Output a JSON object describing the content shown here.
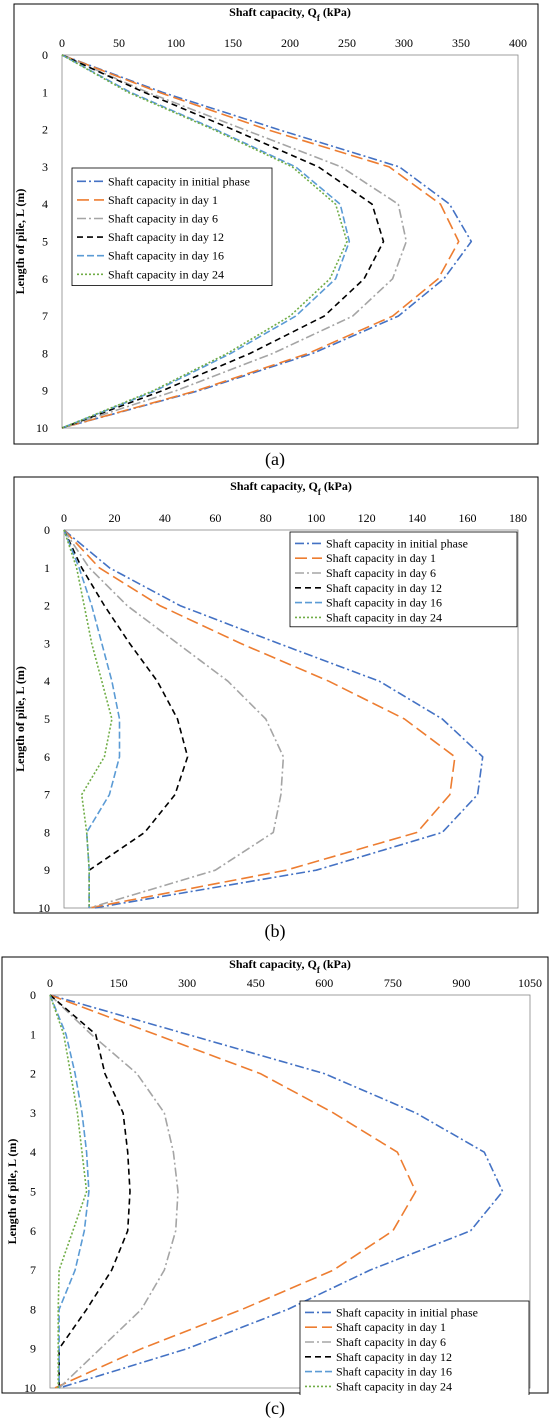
{
  "chart_data": [
    {
      "type": "line",
      "panel": "a",
      "caption": "(a)",
      "xlabel": "Shaft capacity, Q",
      "xlabel_sub": "f",
      "xlabel_unit": " (kPa)",
      "ylabel": "Length of pile, L (m)",
      "xlim": [
        0,
        400
      ],
      "ylim": [
        0,
        10
      ],
      "xticks": [
        0,
        50,
        100,
        150,
        200,
        250,
        300,
        350,
        400
      ],
      "yticks": [
        0,
        1,
        2,
        3,
        4,
        5,
        6,
        7,
        8,
        9,
        10
      ],
      "x_axis_position": "top",
      "y_inverted": true,
      "legend_position": "left-middle",
      "series": [
        {
          "name": "Shaft capacity in initial phase",
          "color": "#4472c4",
          "dash": "dashdot",
          "x": [
            0,
            88,
            190,
            296,
            340,
            359,
            335,
            295,
            220,
            120,
            0
          ],
          "y": [
            0,
            1,
            2,
            3,
            4,
            5,
            6,
            7,
            8,
            9,
            10
          ]
        },
        {
          "name": "Shaft capacity in day 1",
          "color": "#ed7d31",
          "dash": "longdash",
          "x": [
            0,
            85,
            180,
            287,
            332,
            348,
            330,
            290,
            216,
            118,
            0
          ],
          "y": [
            0,
            1,
            2,
            3,
            4,
            5,
            6,
            7,
            8,
            9,
            10
          ]
        },
        {
          "name": "Shaft capacity in day 6",
          "color": "#a5a5a5",
          "dash": "dashdot",
          "x": [
            0,
            75,
            160,
            245,
            295,
            302,
            290,
            255,
            185,
            100,
            0
          ],
          "y": [
            0,
            1,
            2,
            3,
            4,
            5,
            6,
            7,
            8,
            9,
            10
          ]
        },
        {
          "name": "Shaft capacity in day 12",
          "color": "#000000",
          "dash": "shortdash",
          "x": [
            0,
            72,
            150,
            225,
            272,
            282,
            265,
            230,
            165,
            88,
            0
          ],
          "y": [
            0,
            1,
            2,
            3,
            4,
            5,
            6,
            7,
            8,
            9,
            10
          ]
        },
        {
          "name": "Shaft capacity in day 16",
          "color": "#5b9bd5",
          "dash": "mediumdash",
          "x": [
            0,
            60,
            135,
            205,
            244,
            252,
            240,
            205,
            148,
            82,
            0
          ],
          "y": [
            0,
            1,
            2,
            3,
            4,
            5,
            6,
            7,
            8,
            9,
            10
          ]
        },
        {
          "name": "Shaft capacity in day 24",
          "color": "#70ad47",
          "dash": "dotted",
          "x": [
            0,
            58,
            133,
            202,
            240,
            250,
            235,
            200,
            145,
            80,
            0
          ],
          "y": [
            0,
            1,
            2,
            3,
            4,
            5,
            6,
            7,
            8,
            9,
            10
          ]
        }
      ]
    },
    {
      "type": "line",
      "panel": "b",
      "caption": "(b)",
      "xlabel": "Shaft capacity, Q",
      "xlabel_sub": "f",
      "xlabel_unit": " (kPa)",
      "ylabel": "Length of pile, L (m)",
      "xlim": [
        0,
        180
      ],
      "ylim": [
        0,
        10
      ],
      "xticks": [
        0,
        20,
        40,
        60,
        80,
        100,
        120,
        140,
        160,
        180
      ],
      "yticks": [
        0,
        1,
        2,
        3,
        4,
        5,
        6,
        7,
        8,
        9,
        10
      ],
      "x_axis_position": "top",
      "y_inverted": true,
      "legend_position": "top-right",
      "series": [
        {
          "name": "Shaft capacity in initial phase",
          "color": "#4472c4",
          "dash": "dashdot",
          "x": [
            0,
            18,
            46,
            85,
            125,
            150,
            166,
            164,
            150,
            100,
            12
          ],
          "y": [
            0,
            1,
            2,
            3,
            4,
            5,
            6,
            7,
            8,
            9,
            10
          ]
        },
        {
          "name": "Shaft capacity in day 1",
          "color": "#ed7d31",
          "dash": "longdash",
          "x": [
            0,
            14,
            38,
            70,
            105,
            135,
            155,
            153,
            140,
            88,
            10
          ],
          "y": [
            0,
            1,
            2,
            3,
            4,
            5,
            6,
            7,
            8,
            9,
            10
          ]
        },
        {
          "name": "Shaft capacity in day 6",
          "color": "#a5a5a5",
          "dash": "dashdot",
          "x": [
            0,
            10,
            25,
            45,
            65,
            80,
            87,
            86,
            83,
            60,
            10
          ],
          "y": [
            0,
            1,
            2,
            3,
            4,
            5,
            6,
            7,
            8,
            9,
            10
          ]
        },
        {
          "name": "Shaft capacity in day 12",
          "color": "#000000",
          "dash": "shortdash",
          "x": [
            0,
            7,
            16,
            26,
            37,
            45,
            49,
            44,
            32,
            10,
            10
          ],
          "y": [
            0,
            1,
            2,
            3,
            4,
            5,
            6,
            7,
            8,
            9,
            10
          ]
        },
        {
          "name": "Shaft capacity in day 16",
          "color": "#5b9bd5",
          "dash": "mediumdash",
          "x": [
            0,
            6,
            11,
            15,
            19,
            22,
            22,
            18,
            9,
            10,
            10
          ],
          "y": [
            0,
            1,
            2,
            3,
            4,
            5,
            6,
            7,
            8,
            9,
            10
          ]
        },
        {
          "name": "Shaft capacity in day 24",
          "color": "#70ad47",
          "dash": "dotted",
          "x": [
            0,
            5,
            8,
            11,
            15,
            19,
            16,
            7,
            9,
            10,
            10
          ],
          "y": [
            0,
            1,
            2,
            3,
            4,
            5,
            6,
            7,
            8,
            9,
            10
          ]
        }
      ]
    },
    {
      "type": "line",
      "panel": "c",
      "caption": "(c)",
      "xlabel": "Shaft capacity, Q",
      "xlabel_sub": "f",
      "xlabel_unit": " (kPa)",
      "ylabel": "Length of pile, L (m)",
      "xlim": [
        0,
        1050
      ],
      "ylim": [
        0,
        10
      ],
      "xticks": [
        0,
        150,
        300,
        450,
        600,
        750,
        900,
        1050
      ],
      "yticks": [
        0,
        1,
        2,
        3,
        4,
        5,
        6,
        7,
        8,
        9,
        10
      ],
      "x_axis_position": "top",
      "y_inverted": true,
      "legend_position": "bottom-right",
      "series": [
        {
          "name": "Shaft capacity in initial phase",
          "color": "#4472c4",
          "dash": "dashdot",
          "x": [
            0,
            300,
            600,
            800,
            950,
            990,
            920,
            700,
            520,
            300,
            20
          ],
          "y": [
            0,
            1,
            2,
            3,
            4,
            5,
            6,
            7,
            8,
            9,
            10
          ]
        },
        {
          "name": "Shaft capacity in day 1",
          "color": "#ed7d31",
          "dash": "longdash",
          "x": [
            0,
            230,
            460,
            620,
            760,
            800,
            750,
            620,
            420,
            200,
            10
          ],
          "y": [
            0,
            1,
            2,
            3,
            4,
            5,
            6,
            7,
            8,
            9,
            10
          ]
        },
        {
          "name": "Shaft capacity in day 6",
          "color": "#a5a5a5",
          "dash": "dashdot",
          "x": [
            0,
            90,
            190,
            250,
            270,
            280,
            275,
            250,
            200,
            110,
            20
          ],
          "y": [
            0,
            1,
            2,
            3,
            4,
            5,
            6,
            7,
            8,
            9,
            10
          ]
        },
        {
          "name": "Shaft capacity in day 12",
          "color": "#000000",
          "dash": "shortdash",
          "x": [
            0,
            100,
            120,
            160,
            170,
            175,
            170,
            135,
            80,
            20,
            20
          ],
          "y": [
            0,
            1,
            2,
            3,
            4,
            5,
            6,
            7,
            8,
            9,
            10
          ]
        },
        {
          "name": "Shaft capacity in day 16",
          "color": "#5b9bd5",
          "dash": "mediumdash",
          "x": [
            0,
            35,
            55,
            70,
            80,
            85,
            75,
            55,
            20,
            20,
            20
          ],
          "y": [
            0,
            1,
            2,
            3,
            4,
            5,
            6,
            7,
            8,
            9,
            10
          ]
        },
        {
          "name": "Shaft capacity in day 24",
          "color": "#70ad47",
          "dash": "dotted",
          "x": [
            0,
            30,
            45,
            60,
            70,
            80,
            50,
            20,
            18,
            18,
            18
          ],
          "y": [
            0,
            1,
            2,
            3,
            4,
            5,
            6,
            7,
            8,
            9,
            10
          ]
        }
      ]
    }
  ]
}
